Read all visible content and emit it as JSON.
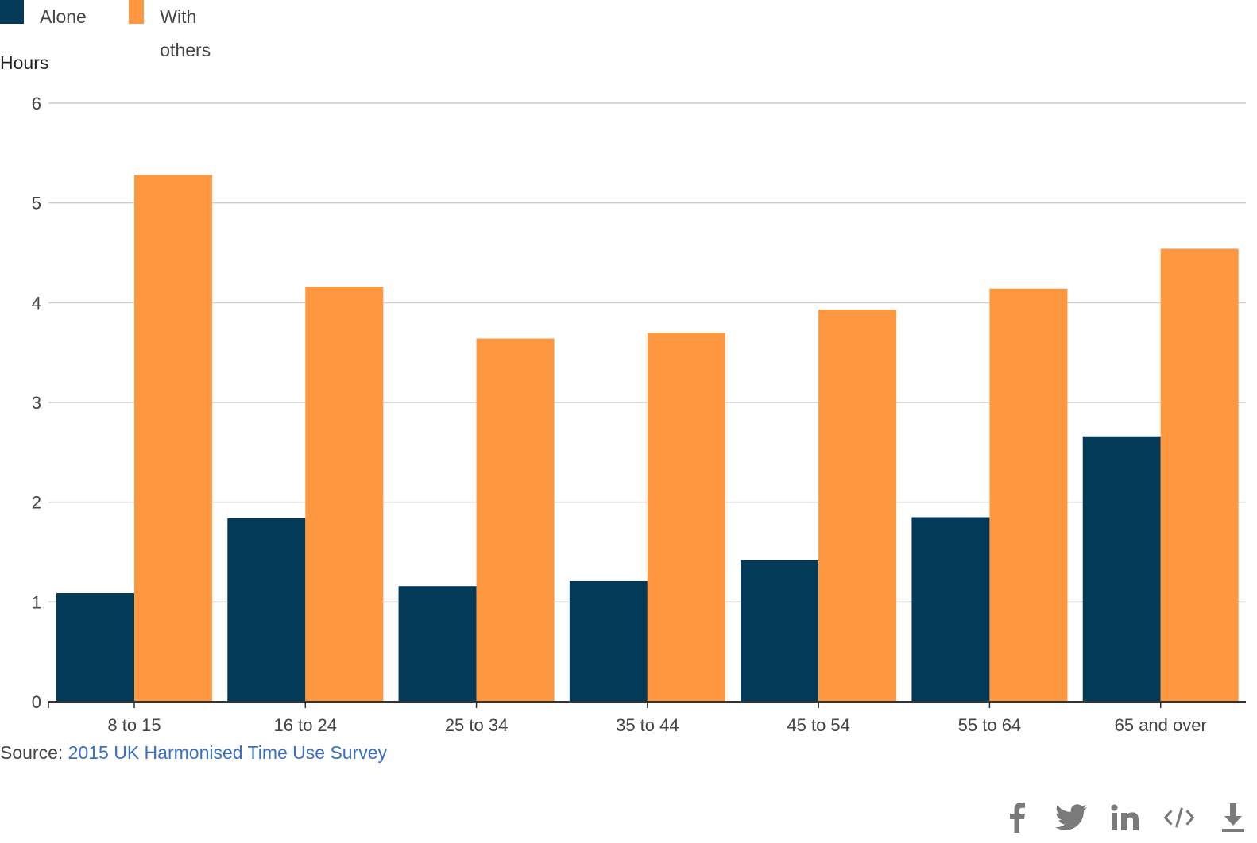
{
  "legend": {
    "alone": "Alone",
    "with_others": "With others"
  },
  "colors": {
    "alone": "#033a57",
    "with_others": "#fd9740",
    "grid": "#cccccc",
    "axis": "#333333",
    "link": "#3a6fc4"
  },
  "source": {
    "prefix": "Source: ",
    "link_text": "2015 UK Harmonised Time Use Survey"
  },
  "share_icons": [
    "facebook-icon",
    "twitter-icon",
    "linkedin-icon",
    "embed-icon",
    "download-icon"
  ],
  "chart_data": {
    "type": "bar",
    "ylabel": "Hours",
    "xlabel": "",
    "ylim": [
      0,
      6
    ],
    "yticks": [
      0,
      1,
      2,
      3,
      4,
      5,
      6
    ],
    "grid": true,
    "legend_position": "top-left",
    "categories": [
      "8 to 15",
      "16 to 24",
      "25 to 34",
      "35 to 44",
      "45 to 54",
      "55 to 64",
      "65 and over"
    ],
    "series": [
      {
        "name": "Alone",
        "values": [
          1.09,
          1.84,
          1.16,
          1.21,
          1.42,
          1.85,
          2.66
        ]
      },
      {
        "name": "With others",
        "values": [
          5.28,
          4.16,
          3.64,
          3.7,
          3.93,
          4.14,
          4.54
        ]
      }
    ]
  }
}
